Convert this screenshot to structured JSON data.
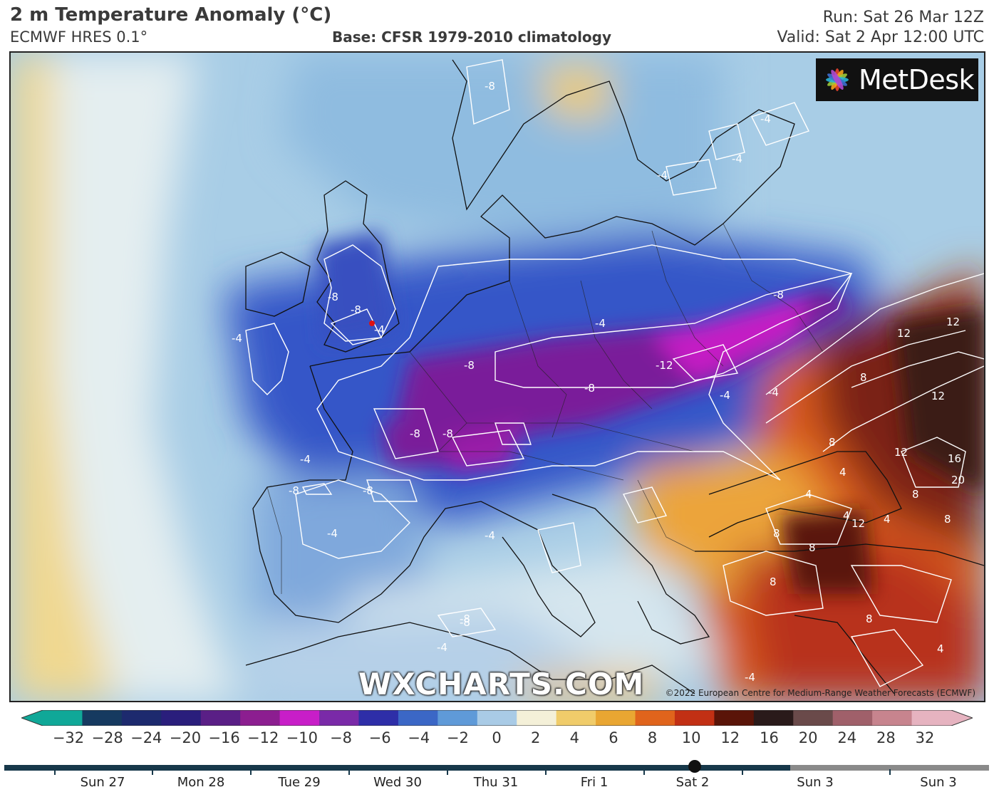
{
  "header": {
    "title": "2 m Temperature Anomaly (°C)",
    "subtitle": "ECMWF HRES 0.1°",
    "base": "Base: CFSR 1979-2010 climatology",
    "run": "Run: Sat 26 Mar 12Z",
    "valid": "Valid: Sat 2 Apr 12:00 UTC"
  },
  "map": {
    "logo_text": "MetDesk",
    "watermark": "WXCHARTS.COM",
    "copyright": "©2022 European Centre for Medium-Range Weather Forecasts (ECMWF)",
    "contour_labels": [
      "-8",
      "-4",
      "-4",
      "-8",
      "-8",
      "-4",
      "-4",
      "-8",
      "-4",
      "-4",
      "-8",
      "-8",
      "-12",
      "-8",
      "-8",
      "-8",
      "-4",
      "-4",
      "-8",
      "-4",
      "-4",
      "-4",
      "-8",
      "-4",
      "4",
      "8",
      "12",
      "12",
      "12",
      "8",
      "4",
      "12",
      "16",
      "20",
      "8",
      "4",
      "8",
      "4",
      "8",
      "8",
      "12",
      "8",
      "8",
      "4",
      "-4",
      "-8"
    ]
  },
  "colorbar": {
    "ticks": [
      "−32",
      "−28",
      "−24",
      "−20",
      "−16",
      "−12",
      "−10",
      "−8",
      "−6",
      "−4",
      "−2",
      "0",
      "2",
      "4",
      "6",
      "8",
      "10",
      "12",
      "16",
      "20",
      "24",
      "28",
      "32"
    ],
    "colors": [
      "#10a898",
      "#163a60",
      "#1d2a6e",
      "#2a1e7c",
      "#5a1f86",
      "#8c1e90",
      "#c81ec8",
      "#7a2aa8",
      "#2e2ea8",
      "#3b67c6",
      "#5f9ad8",
      "#a9cbe6",
      "#f4f0d8",
      "#f0cc6a",
      "#e9a632",
      "#e0641c",
      "#c23014",
      "#5a1408",
      "#2a1a1a",
      "#6a4a4a",
      "#a0606a",
      "#c7848e",
      "#e6b3c0"
    ]
  },
  "timeline": {
    "days": [
      "Sun 27",
      "Mon 28",
      "Tue 29",
      "Wed 30",
      "Thu 31",
      "Fri 1",
      "Sat 2",
      "Sun 3",
      "Sun 3"
    ],
    "selected": "Sat 2"
  }
}
